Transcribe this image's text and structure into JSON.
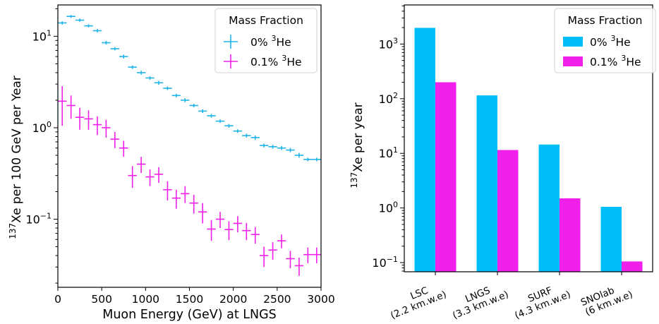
{
  "chart_data": [
    {
      "type": "scatter",
      "xlabel": "Muon Energy (GeV) at LNGS",
      "ylabel": {
        "prefix": "137",
        "text": "Xe per 100 GeV per Year"
      },
      "xlim": [
        0,
        3000
      ],
      "ylim": [
        0.018,
        22
      ],
      "yscale": "log",
      "grid": false,
      "xticks": [
        "0",
        "500",
        "1000",
        "1500",
        "2000",
        "2500",
        "3000"
      ],
      "yticks": [
        {
          "base": "10",
          "exp": "1",
          "value": 10
        },
        {
          "base": "10",
          "exp": "0",
          "value": 1
        },
        {
          "base": "10",
          "exp": "−1",
          "value": 0.1
        }
      ],
      "legend": {
        "title": "Mass Fraction",
        "placement": "top-right",
        "entries": [
          {
            "pre": "0% ",
            "sup": "3",
            "post": "He"
          },
          {
            "pre": "0.1% ",
            "sup": "3",
            "post": "He"
          }
        ]
      },
      "series": [
        {
          "name": "0% 3He",
          "color": "#1fb4e8",
          "x": [
            50,
            150,
            250,
            350,
            450,
            550,
            650,
            750,
            850,
            950,
            1050,
            1150,
            1250,
            1350,
            1450,
            1550,
            1650,
            1750,
            1850,
            1950,
            2050,
            2150,
            2250,
            2350,
            2450,
            2550,
            2650,
            2750,
            2850,
            2950
          ],
          "y": [
            14,
            16.5,
            15,
            13,
            11.5,
            8.5,
            7.3,
            6.0,
            4.6,
            4.0,
            3.5,
            3.1,
            2.7,
            2.25,
            2.0,
            1.75,
            1.52,
            1.35,
            1.18,
            1.05,
            0.92,
            0.82,
            0.78,
            0.64,
            0.62,
            0.6,
            0.57,
            0.5,
            0.45,
            0.45
          ],
          "yerr": [
            0.6,
            0.6,
            0.6,
            0.5,
            0.5,
            0.4,
            0.3,
            0.3,
            0.2,
            0.2,
            0.15,
            0.15,
            0.12,
            0.1,
            0.1,
            0.08,
            0.07,
            0.06,
            0.05,
            0.05,
            0.04,
            0.04,
            0.04,
            0.03,
            0.03,
            0.03,
            0.03,
            0.03,
            0.02,
            0.02
          ]
        },
        {
          "name": "0.1% 3He",
          "color": "#f01fe9",
          "x": [
            50,
            150,
            250,
            350,
            450,
            550,
            650,
            750,
            850,
            950,
            1050,
            1150,
            1250,
            1350,
            1450,
            1550,
            1650,
            1750,
            1850,
            1950,
            2050,
            2150,
            2250,
            2350,
            2450,
            2550,
            2650,
            2750,
            2850,
            2950
          ],
          "y": [
            1.95,
            1.75,
            1.3,
            1.25,
            1.08,
            1.0,
            0.75,
            0.6,
            0.3,
            0.4,
            0.29,
            0.31,
            0.21,
            0.17,
            0.19,
            0.15,
            0.12,
            0.078,
            0.1,
            0.077,
            0.09,
            0.075,
            0.068,
            0.04,
            0.046,
            0.058,
            0.037,
            0.031,
            0.041,
            0.041
          ],
          "yerr": [
            0.9,
            0.5,
            0.35,
            0.3,
            0.25,
            0.22,
            0.15,
            0.12,
            0.08,
            0.08,
            0.06,
            0.06,
            0.05,
            0.04,
            0.04,
            0.035,
            0.03,
            0.02,
            0.02,
            0.018,
            0.018,
            0.016,
            0.014,
            0.01,
            0.01,
            0.01,
            0.008,
            0.007,
            0.008,
            0.008
          ]
        }
      ]
    },
    {
      "type": "bar",
      "ylabel": {
        "prefix": "137",
        "text": "Xe per year"
      },
      "yscale": "log",
      "ylim": [
        0.068,
        5200
      ],
      "grid": false,
      "yticks": [
        {
          "base": "10",
          "exp": "3",
          "value": 1000
        },
        {
          "base": "10",
          "exp": "2",
          "value": 100
        },
        {
          "base": "10",
          "exp": "1",
          "value": 10
        },
        {
          "base": "10",
          "exp": "0",
          "value": 1
        },
        {
          "base": "10",
          "exp": "−1",
          "value": 0.1
        }
      ],
      "categories": [
        {
          "line1": "LSC",
          "line2": "(2.2 km.w.e)"
        },
        {
          "line1": "LNGS",
          "line2": "(3.3 km.w.e)"
        },
        {
          "line1": "SURF",
          "line2": "(4.3 km.w.e)"
        },
        {
          "line1": "SNOlab",
          "line2": "(6 km.w.e)"
        }
      ],
      "legend": {
        "title": "Mass Fraction",
        "placement": "top-right",
        "entries": [
          {
            "pre": "0% ",
            "sup": "3",
            "post": "He"
          },
          {
            "pre": "0.1% ",
            "sup": "3",
            "post": "He"
          }
        ]
      },
      "series": [
        {
          "name": "0% 3He",
          "color": "#00bff8",
          "values": [
            1980,
            115,
            14.5,
            1.05
          ]
        },
        {
          "name": "0.1% 3He",
          "color": "#f01fe9",
          "values": [
            200,
            11.5,
            1.5,
            0.105
          ]
        }
      ]
    }
  ]
}
